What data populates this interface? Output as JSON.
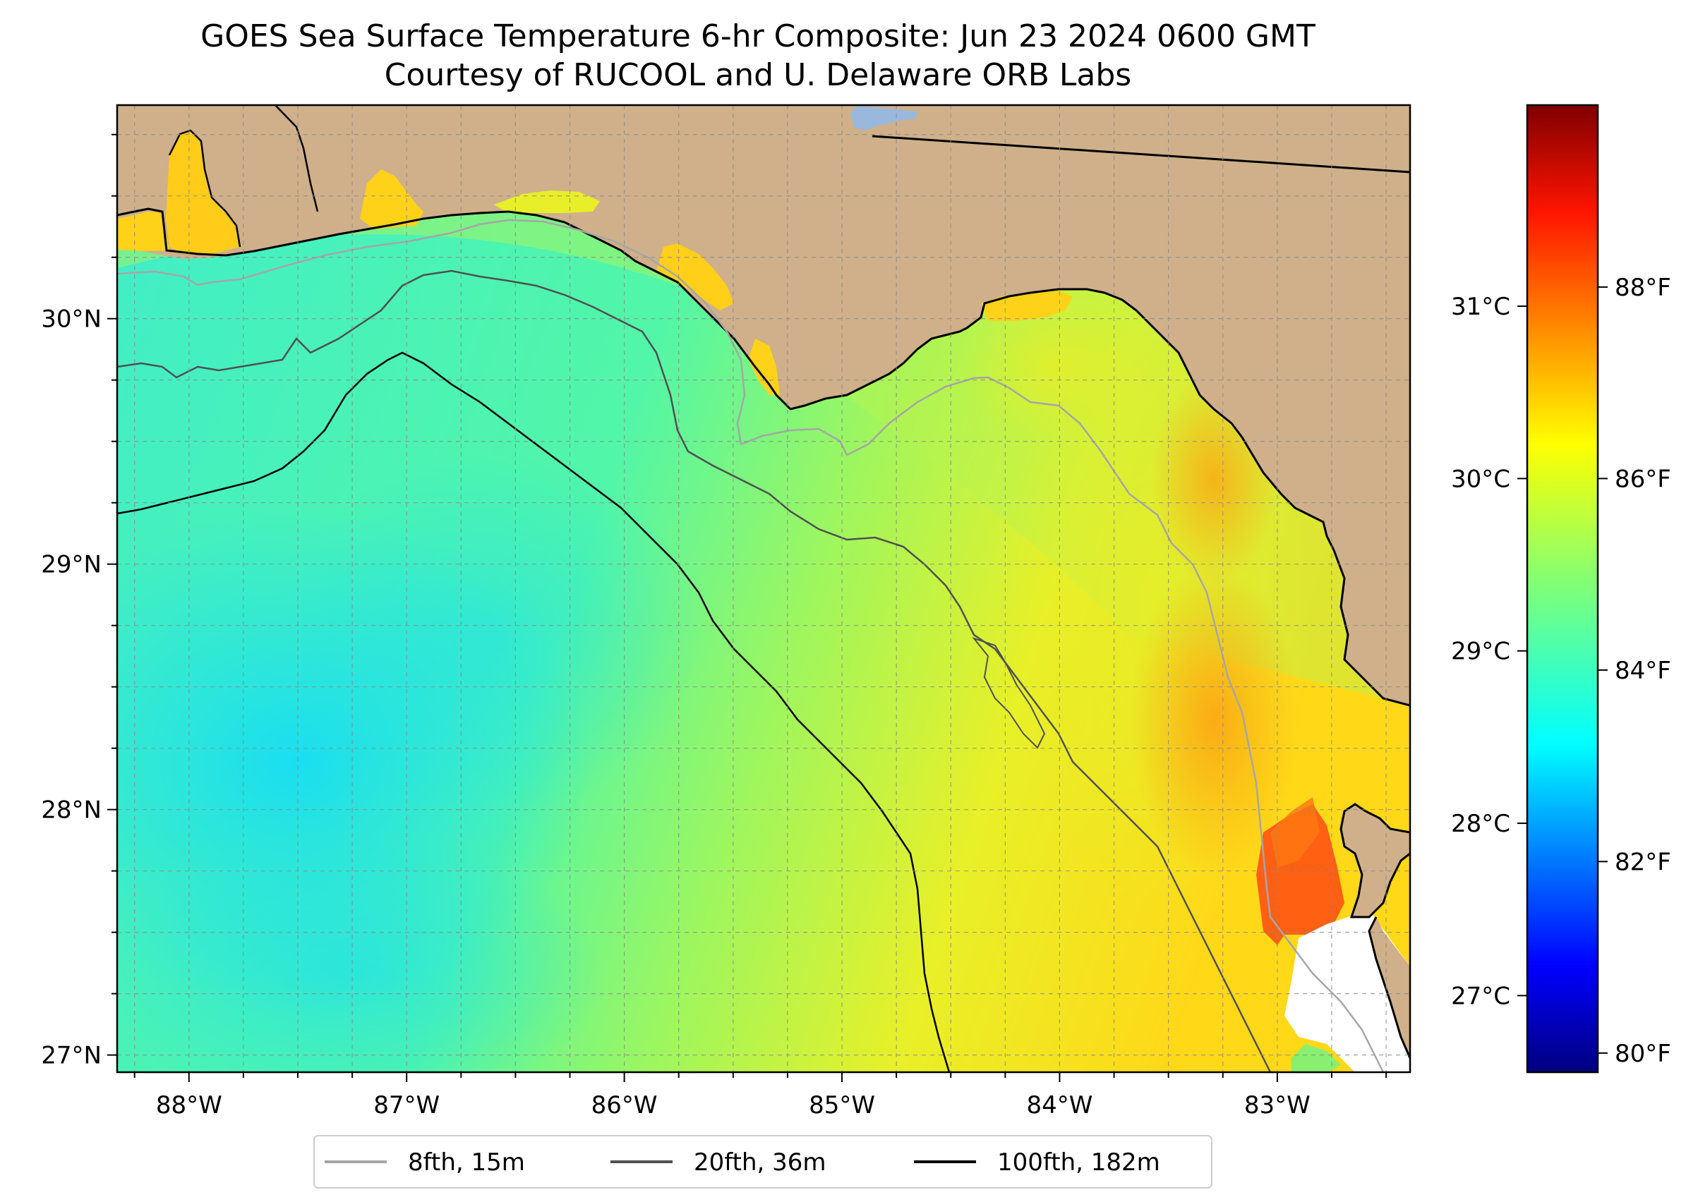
{
  "title": {
    "line1": "GOES Sea Surface Temperature 6-hr Composite: Jun 23 2024 0600 GMT",
    "line2": "Courtesy of RUCOOL and U. Delaware ORB Labs"
  },
  "map": {
    "lon_range": [
      -88.33,
      -82.39
    ],
    "lat_range": [
      26.93,
      30.87
    ],
    "lon_ticks": [
      {
        "value": -88,
        "label": "88°W"
      },
      {
        "value": -87,
        "label": "87°W"
      },
      {
        "value": -86,
        "label": "86°W"
      },
      {
        "value": -85,
        "label": "85°W"
      },
      {
        "value": -84,
        "label": "84°W"
      },
      {
        "value": -83,
        "label": "83°W"
      }
    ],
    "lat_ticks": [
      {
        "value": 30,
        "label": "30°N"
      },
      {
        "value": 29,
        "label": "29°N"
      },
      {
        "value": 28,
        "label": "28°N"
      },
      {
        "value": 27,
        "label": "27°N"
      }
    ],
    "grid": "dashed, every 0.25°",
    "colors": {
      "land": "#cfb08a",
      "ocean_cool": "#1ee4f2",
      "ocean_mid": "#4ef6b0",
      "ocean_warm": "#c8f52e",
      "coastal_warm": "#ffd21a",
      "hot": "#ff6a10",
      "no_data": "#ffffff",
      "lake": "#9ab8dc"
    }
  },
  "colorbar": {
    "celsius_ticks": [
      {
        "value": 31,
        "label": "31°C"
      },
      {
        "value": 30,
        "label": "30°C"
      },
      {
        "value": 29,
        "label": "29°C"
      },
      {
        "value": 28,
        "label": "28°C"
      },
      {
        "value": 27,
        "label": "27°C"
      }
    ],
    "fahrenheit_ticks": [
      {
        "value": 88,
        "label": "88°F"
      },
      {
        "value": 86,
        "label": "86°F"
      },
      {
        "value": 84,
        "label": "84°F"
      },
      {
        "value": 82,
        "label": "82°F"
      },
      {
        "value": 80,
        "label": "80°F"
      }
    ],
    "range_f": [
      79.8,
      89.9
    ],
    "colormap": "jet"
  },
  "legend": {
    "placement": "bottom-center",
    "items": [
      {
        "label": "8fth, 15m",
        "color": "#a6a6a6"
      },
      {
        "label": "20fth, 36m",
        "color": "#505050"
      },
      {
        "label": "100fth, 182m",
        "color": "#000000"
      }
    ]
  }
}
